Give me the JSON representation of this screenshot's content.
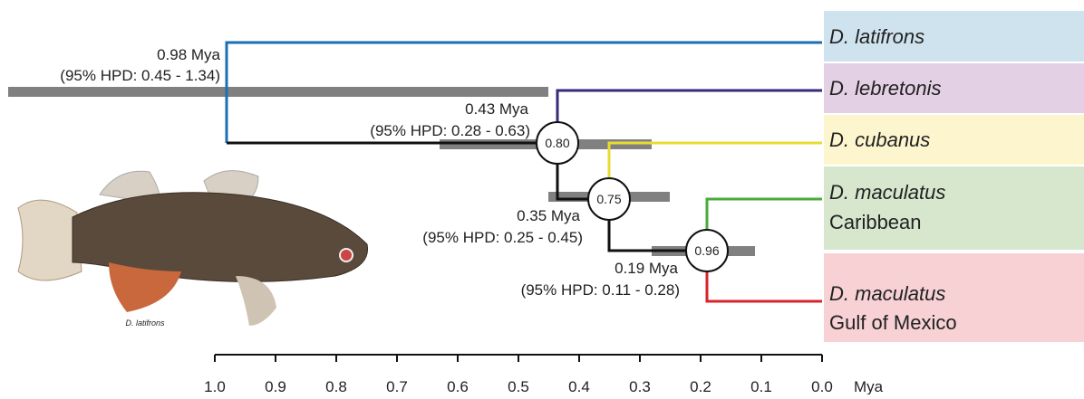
{
  "tree": {
    "nodes": [
      {
        "age": "0.98 Mya",
        "hpd": "(95% HPD: 0.45 - 1.34)"
      },
      {
        "age": "0.43 Mya",
        "hpd": "(95% HPD: 0.28 - 0.63)",
        "support": "0.80"
      },
      {
        "age": "0.35 Mya",
        "hpd": "(95% HPD: 0.25 - 0.45)",
        "support": "0.75"
      },
      {
        "age": "0.19 Mya",
        "hpd": "(95% HPD: 0.11 - 0.28)",
        "support": "0.96"
      }
    ],
    "taxa": [
      {
        "name": "D. latifrons"
      },
      {
        "name": "D. lebretonis"
      },
      {
        "name": "D. cubanus"
      },
      {
        "name": "D. maculatus",
        "region": "Caribbean"
      },
      {
        "name": "D. maculatus",
        "region": "Gulf of Mexico"
      }
    ]
  },
  "image_caption": "D. latifrons",
  "axis": {
    "ticks": [
      "1.0",
      "0.9",
      "0.8",
      "0.7",
      "0.6",
      "0.5",
      "0.4",
      "0.3",
      "0.2",
      "0.1",
      "0.0"
    ],
    "unit": "Mya"
  }
}
